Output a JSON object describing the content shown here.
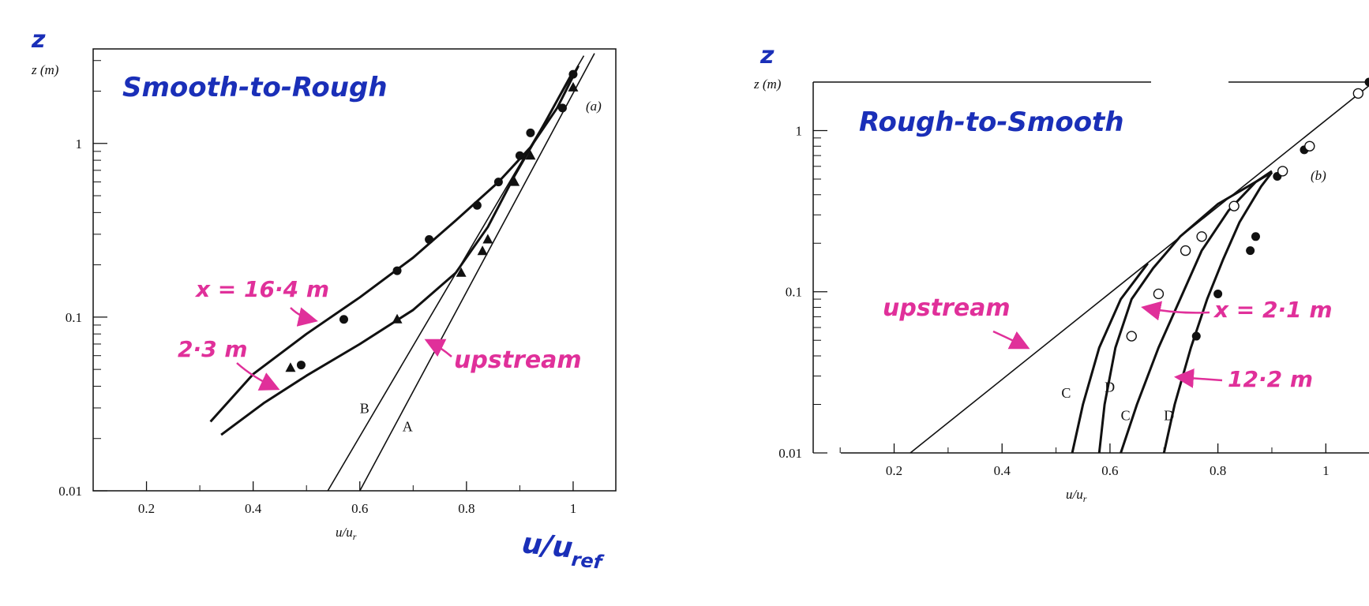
{
  "colors": {
    "ink": "#111111",
    "annotation_blue": "#1a2fb8",
    "annotation_pink": "#e0309a"
  },
  "chart_data": [
    {
      "type": "line",
      "panel_tag": "(a)",
      "title": "Smooth-to-Rough",
      "xlabel": "u/u",
      "xlabel_sub": "r",
      "ylabel": "z (m)",
      "y_scale": "log",
      "xlim": [
        0.1,
        1.08
      ],
      "ylim": [
        0.01,
        3.5
      ],
      "x_ticks": [
        0.2,
        0.4,
        0.6,
        0.8,
        1
      ],
      "x_tick_labels": [
        "0.2",
        "0.4",
        "0.6",
        "0.8",
        "1"
      ],
      "y_ticks": [
        0.01,
        0.1,
        1
      ],
      "y_tick_labels": [
        "0.01",
        "0.1",
        "1"
      ],
      "hand_axis_labels": {
        "z": "z",
        "x": "u/u",
        "x_sub": "ref"
      },
      "curves": [
        {
          "label": "",
          "points": [
            [
              0.32,
              0.025
            ],
            [
              0.4,
              0.047
            ],
            [
              0.5,
              0.08
            ],
            [
              0.6,
              0.13
            ],
            [
              0.7,
              0.22
            ],
            [
              0.78,
              0.36
            ],
            [
              0.86,
              0.6
            ],
            [
              0.92,
              0.95
            ],
            [
              0.97,
              1.6
            ],
            [
              1.01,
              2.8
            ]
          ]
        },
        {
          "label": "",
          "points": [
            [
              0.34,
              0.021
            ],
            [
              0.42,
              0.032
            ],
            [
              0.5,
              0.046
            ],
            [
              0.6,
              0.07
            ],
            [
              0.7,
              0.11
            ],
            [
              0.78,
              0.18
            ],
            [
              0.84,
              0.33
            ],
            [
              0.89,
              0.65
            ],
            [
              0.94,
              1.2
            ],
            [
              1.0,
              2.6
            ]
          ]
        },
        {
          "label": "B",
          "label_at": [
            0.6,
            0.028
          ],
          "points": [
            [
              0.54,
              0.01
            ],
            [
              1.02,
              3.2
            ]
          ]
        },
        {
          "label": "A",
          "label_at": [
            0.68,
            0.022
          ],
          "points": [
            [
              0.6,
              0.01
            ],
            [
              1.04,
              3.3
            ]
          ]
        }
      ],
      "circles_filled": [
        [
          0.49,
          0.053
        ],
        [
          0.57,
          0.097
        ],
        [
          0.67,
          0.185
        ],
        [
          0.73,
          0.28
        ],
        [
          0.82,
          0.44
        ],
        [
          0.86,
          0.6
        ],
        [
          0.9,
          0.85
        ],
        [
          0.92,
          1.15
        ],
        [
          0.98,
          1.6
        ],
        [
          1.0,
          2.5
        ]
      ],
      "triangles_filled": [
        [
          0.47,
          0.051
        ],
        [
          0.67,
          0.097
        ],
        [
          0.79,
          0.18
        ],
        [
          0.83,
          0.24
        ],
        [
          0.84,
          0.28
        ],
        [
          0.89,
          0.6
        ],
        [
          0.92,
          0.85
        ],
        [
          1.0,
          2.1
        ]
      ],
      "annotations": [
        {
          "text": "x = 16·4 m",
          "target": [
            0.52,
            0.085
          ]
        },
        {
          "text": "2·3 m",
          "target": [
            0.44,
            0.035
          ]
        },
        {
          "text": "upstream",
          "target": [
            0.72,
            0.07
          ]
        }
      ]
    },
    {
      "type": "line",
      "panel_tag": "(b)",
      "title": "Rough-to-Smooth",
      "xlabel": "u/u",
      "xlabel_sub": "r",
      "ylabel": "z (m)",
      "y_scale": "log",
      "xlim": [
        0.05,
        1.08
      ],
      "ylim": [
        0.01,
        2.0
      ],
      "x_ticks": [
        0.2,
        0.4,
        0.6,
        0.8,
        1
      ],
      "x_tick_labels": [
        "0.2",
        "0.4",
        "0.6",
        "0.8",
        "1"
      ],
      "y_ticks": [
        0.01,
        0.1,
        1
      ],
      "y_tick_labels": [
        "0.01",
        "0.1",
        "1"
      ],
      "hand_axis_labels": {
        "z": "z"
      },
      "curves": [
        {
          "label": "",
          "points": [
            [
              0.23,
              0.01
            ],
            [
              1.08,
              1.9
            ]
          ]
        },
        {
          "label": "C",
          "label_at": [
            0.51,
            0.022
          ],
          "points": [
            [
              0.53,
              0.01
            ],
            [
              0.55,
              0.02
            ],
            [
              0.58,
              0.045
            ],
            [
              0.62,
              0.09
            ],
            [
              0.67,
              0.15
            ]
          ]
        },
        {
          "label": "D",
          "label_at": [
            0.59,
            0.024
          ],
          "points": [
            [
              0.58,
              0.01
            ],
            [
              0.59,
              0.02
            ],
            [
              0.61,
              0.045
            ],
            [
              0.64,
              0.09
            ],
            [
              0.68,
              0.14
            ],
            [
              0.73,
              0.22
            ],
            [
              0.8,
              0.35
            ],
            [
              0.9,
              0.55
            ]
          ]
        },
        {
          "label": "C",
          "label_at": [
            0.62,
            0.016
          ],
          "points": [
            [
              0.62,
              0.01
            ],
            [
              0.65,
              0.02
            ],
            [
              0.69,
              0.045
            ],
            [
              0.73,
              0.09
            ],
            [
              0.77,
              0.18
            ],
            [
              0.82,
              0.32
            ],
            [
              0.87,
              0.48
            ],
            [
              0.9,
              0.56
            ]
          ]
        },
        {
          "label": "D",
          "label_at": [
            0.7,
            0.016
          ],
          "points": [
            [
              0.7,
              0.01
            ],
            [
              0.72,
              0.02
            ],
            [
              0.75,
              0.045
            ],
            [
              0.78,
              0.09
            ],
            [
              0.81,
              0.16
            ],
            [
              0.84,
              0.27
            ],
            [
              0.88,
              0.45
            ],
            [
              0.9,
              0.55
            ]
          ]
        }
      ],
      "circles_open": [
        [
          0.64,
          0.053
        ],
        [
          0.69,
          0.097
        ],
        [
          0.74,
          0.18
        ],
        [
          0.77,
          0.22
        ],
        [
          0.83,
          0.34
        ],
        [
          0.92,
          0.56
        ],
        [
          0.97,
          0.8
        ],
        [
          1.06,
          1.7
        ]
      ],
      "circles_filled": [
        [
          0.76,
          0.053
        ],
        [
          0.8,
          0.097
        ],
        [
          0.86,
          0.18
        ],
        [
          0.87,
          0.22
        ],
        [
          0.91,
          0.52
        ],
        [
          0.96,
          0.76
        ],
        [
          1.08,
          2.0
        ]
      ],
      "annotations": [
        {
          "text": "upstream",
          "target": [
            0.47,
            0.038
          ]
        },
        {
          "text": "x = 2·1 m",
          "target": [
            0.67,
            0.08
          ]
        },
        {
          "text": "12·2 m",
          "target": [
            0.74,
            0.05
          ]
        }
      ]
    }
  ]
}
